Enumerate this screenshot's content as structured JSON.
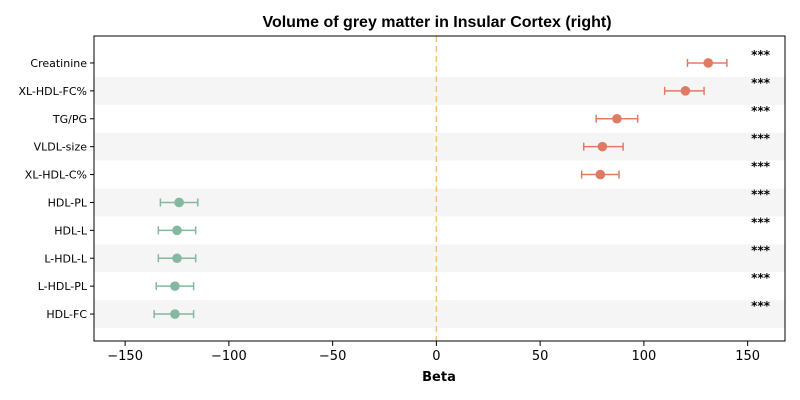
{
  "chart_data": {
    "type": "scatter",
    "title": "Volume of grey matter in Insular Cortex (right)",
    "xlabel": "Beta",
    "ylabel": "",
    "xlim": [
      -165,
      168
    ],
    "xticks": [
      -150,
      -100,
      -50,
      0,
      50,
      100,
      150
    ],
    "xtick_labels": [
      "−150",
      "−100",
      "−50",
      "0",
      "50",
      "100",
      "150"
    ],
    "grid": false,
    "reference_line": 0,
    "categories": [
      "Creatinine",
      "XL-HDL-FC%",
      "TG/PG",
      "VLDL-size",
      "XL-HDL-C%",
      "HDL-PL",
      "HDL-L",
      "L-HDL-L",
      "L-HDL-PL",
      "HDL-FC"
    ],
    "estimates": [
      131,
      120,
      87,
      80,
      79,
      -124,
      -125,
      -125,
      -126,
      -126
    ],
    "ci_lower": [
      121,
      110,
      77,
      71,
      70,
      -133,
      -134,
      -134,
      -135,
      -136
    ],
    "ci_upper": [
      140,
      129,
      97,
      90,
      88,
      -115,
      -116,
      -116,
      -117,
      -117
    ],
    "significance": [
      "***",
      "***",
      "***",
      "***",
      "***",
      "***",
      "***",
      "***",
      "***",
      "***"
    ],
    "colors": {
      "positive": "#e07b63",
      "negative": "#84b89f",
      "reference_line": "#f5c27a",
      "band": "#f5f5f5",
      "axis": "#000000"
    }
  }
}
